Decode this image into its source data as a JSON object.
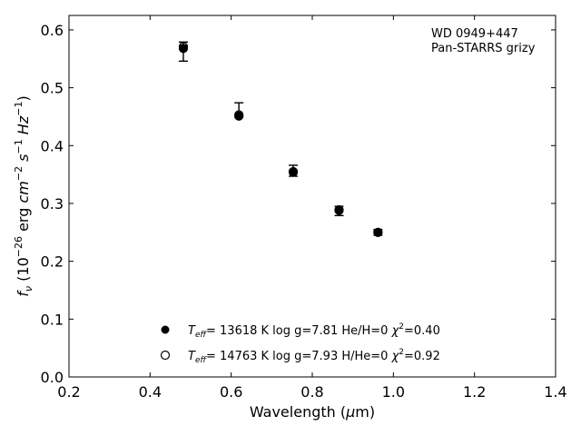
{
  "chart_data": {
    "type": "scatter",
    "annotation": [
      "WD 0949+447",
      "Pan-STARRS grizy"
    ],
    "xlabel": "Wavelength (μm)",
    "ylabel": "fν (10⁻²⁶ erg cm⁻² s⁻¹ Hz⁻¹)",
    "xlim": [
      0.2,
      1.4
    ],
    "ylim": [
      0.0,
      0.625
    ],
    "xticks": [
      "0.2",
      "0.4",
      "0.6",
      "0.8",
      "1.0",
      "1.2",
      "1.4"
    ],
    "yticks": [
      "0.0",
      "0.1",
      "0.2",
      "0.3",
      "0.4",
      "0.5",
      "0.6"
    ],
    "legend_position": "lower-center",
    "observed": {
      "x": [
        0.482,
        0.619,
        0.753,
        0.866,
        0.962
      ],
      "y": [
        0.563,
        0.453,
        0.356,
        0.29,
        0.25
      ],
      "err_low": [
        0.017,
        0.004,
        0.009,
        0.011,
        0.005
      ],
      "err_high": [
        0.016,
        0.021,
        0.01,
        0.005,
        0.005
      ]
    },
    "series": [
      {
        "name": "Teff= 13618 K  log g=7.81  He/H=0  χ²=0.40",
        "marker": "filled-circle",
        "x": [
          0.482,
          0.619,
          0.753,
          0.866,
          0.962
        ],
        "y": [
          0.568,
          0.451,
          0.354,
          0.288,
          0.25
        ]
      },
      {
        "name": "Teff= 14763 K  log g=7.93  H/He=0  χ²=0.92",
        "marker": "open-circle",
        "x": [
          0.482,
          0.619,
          0.753,
          0.866,
          0.962
        ],
        "y": [
          0.571,
          0.453,
          0.355,
          0.289,
          0.25
        ]
      }
    ]
  }
}
